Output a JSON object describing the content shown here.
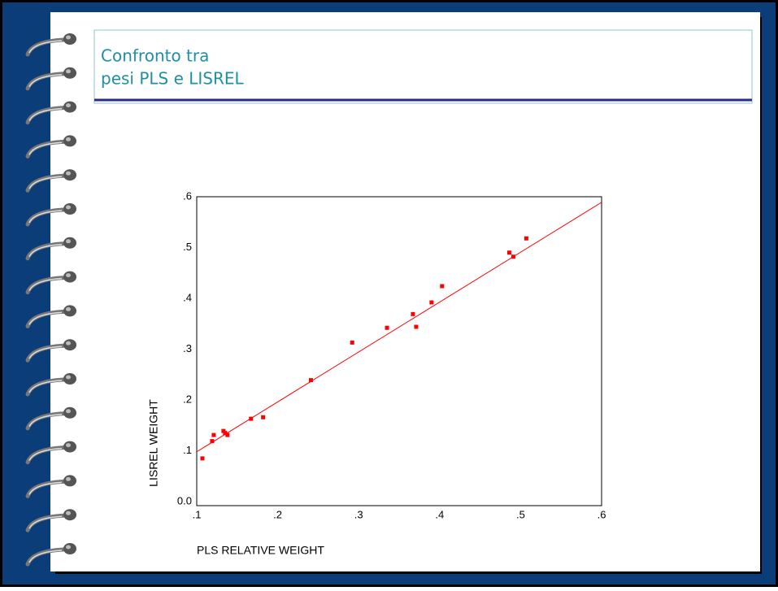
{
  "chart_data": {
    "type": "scatter",
    "title": "Confronto  tra",
    "subtitle": "pesi PLS e LISREL",
    "x_label": "PLS  RELATIVE WEIGHT",
    "y_label": "LISREL   WEIGHT",
    "color": "#ff0000",
    "x": [
      0.107,
      0.119,
      0.121,
      0.133,
      0.135,
      0.138,
      0.167,
      0.182,
      0.241,
      0.292,
      0.335,
      0.367,
      0.371,
      0.39,
      0.403,
      0.486,
      0.491,
      0.507
    ],
    "y": [
      0.085,
      0.119,
      0.131,
      0.139,
      0.135,
      0.131,
      0.163,
      0.166,
      0.239,
      0.313,
      0.342,
      0.369,
      0.344,
      0.392,
      0.424,
      0.49,
      0.482,
      0.518
    ],
    "fit_line": {
      "x": [
        0.1,
        0.6
      ],
      "y": [
        0.098,
        0.589
      ]
    },
    "xlim": [
      0.1,
      0.6
    ],
    "ylim": [
      -0.008,
      0.6
    ],
    "xticks": [
      {
        "value": 0.1,
        "label": ".1"
      },
      {
        "value": 0.2,
        "label": ".2"
      },
      {
        "value": 0.3,
        "label": ".3"
      },
      {
        "value": 0.4,
        "label": ".4"
      },
      {
        "value": 0.5,
        "label": ".5"
      },
      {
        "value": 0.6,
        "label": ".6"
      }
    ],
    "yticks": [
      {
        "value": 0,
        "label": "0.0"
      },
      {
        "value": 0.1,
        "label": ".1"
      },
      {
        "value": 0.2,
        "label": ".2"
      },
      {
        "value": 0.3,
        "label": ".3"
      },
      {
        "value": 0.4,
        "label": ".4"
      },
      {
        "value": 0.5,
        "label": ".5"
      },
      {
        "value": 0.6,
        "label": ".6"
      }
    ]
  }
}
